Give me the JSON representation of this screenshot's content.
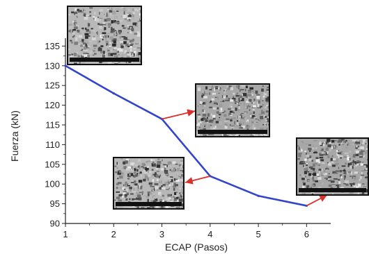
{
  "chart_data": {
    "type": "line",
    "xlabel": "ECAP (Pasos)",
    "ylabel": "Fuerza (kN)",
    "xlim": [
      1,
      6.5
    ],
    "ylim": [
      90,
      137
    ],
    "x_ticks": [
      1,
      2,
      3,
      4,
      5,
      6
    ],
    "y_ticks": [
      90,
      95,
      100,
      105,
      110,
      115,
      120,
      125,
      130,
      135
    ],
    "grid": false,
    "legend": "none",
    "series": [
      {
        "color": "#3344cc",
        "points": [
          {
            "x": 1,
            "y": 130
          },
          {
            "x": 2,
            "y": 123
          },
          {
            "x": 3,
            "y": 116.5
          },
          {
            "x": 4,
            "y": 102
          },
          {
            "x": 5,
            "y": 97
          },
          {
            "x": 6,
            "y": 94.5
          }
        ]
      }
    ],
    "annotation_color": "#d9302a",
    "insets": [
      "sem-micrograph-1-pass",
      "sem-micrograph-3-pass",
      "sem-micrograph-4-pass",
      "sem-micrograph-6-pass"
    ]
  }
}
